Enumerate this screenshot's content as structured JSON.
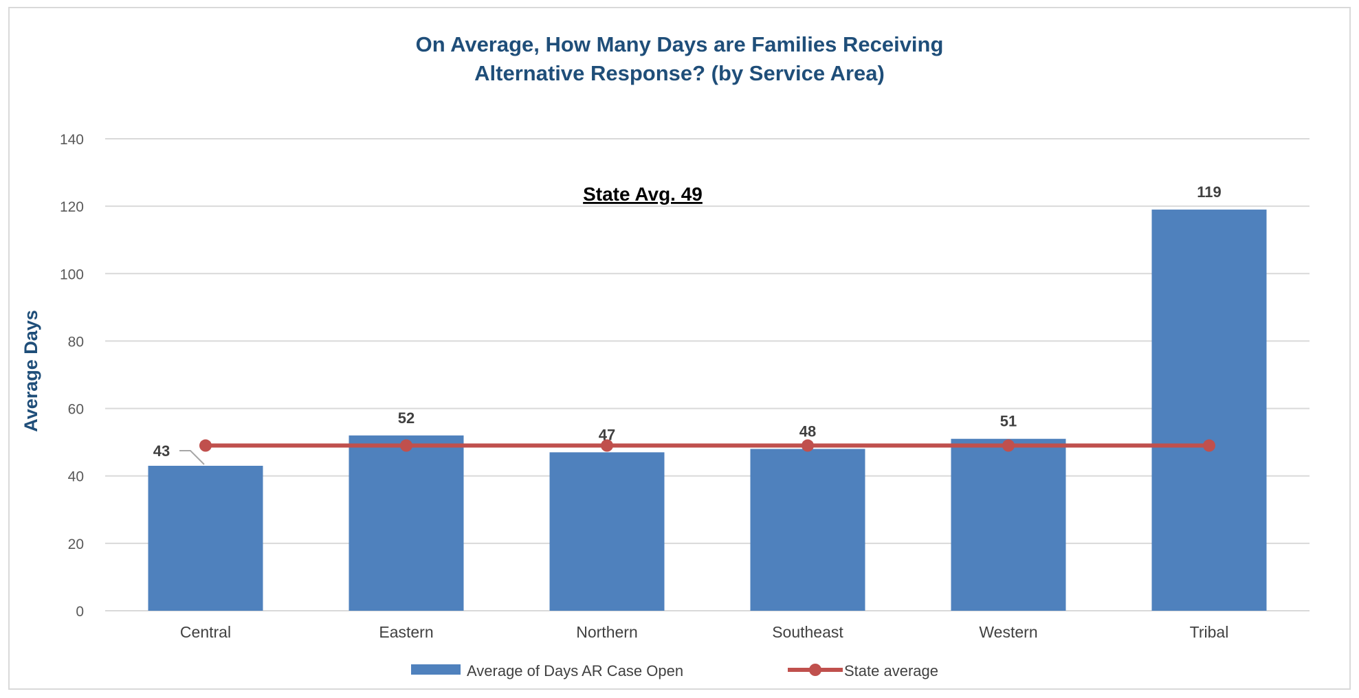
{
  "chart_data": {
    "type": "bar",
    "title_lines": [
      "On Average, How Many Days are Families Receiving",
      "Alternative Response? (by Service Area)"
    ],
    "ylabel": "Average Days",
    "xlabel": "",
    "ylim": [
      0,
      140
    ],
    "yticks": [
      0,
      20,
      40,
      60,
      80,
      100,
      120,
      140
    ],
    "categories": [
      "Central",
      "Eastern",
      "Northern",
      "Southeast",
      "Western",
      "Tribal"
    ],
    "series": [
      {
        "name": "Average of Days AR Case Open",
        "kind": "bar",
        "values": [
          43,
          52,
          47,
          48,
          51,
          119
        ],
        "data_labels": [
          "43",
          "52",
          "47",
          "48",
          "51",
          "119"
        ]
      },
      {
        "name": "State average",
        "kind": "line",
        "values": [
          49,
          49,
          49,
          49,
          49,
          49
        ]
      }
    ],
    "annotation": "State Avg. 49",
    "grid": true,
    "legend_position": "bottom"
  },
  "colors": {
    "bar": "#4f81bd",
    "line": "#c0504d",
    "grid": "#d9d9d9",
    "title": "#1f4e79"
  }
}
